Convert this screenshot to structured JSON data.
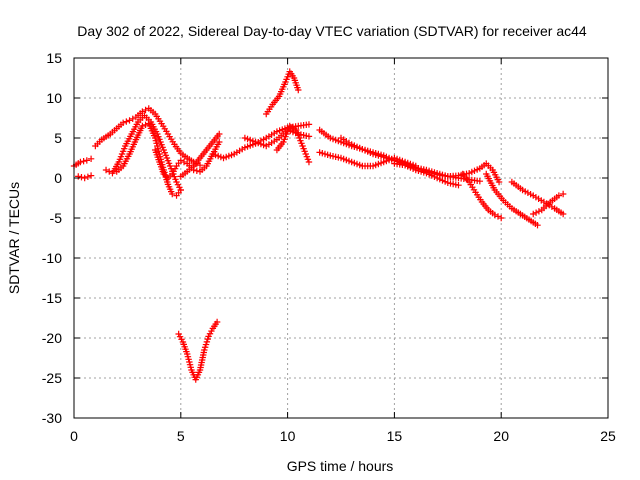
{
  "chart_data": {
    "type": "scatter",
    "title": "Day 302 of 2022, Sidereal Day-to-day VTEC variation (SDTVAR) for receiver ac44",
    "xlabel": "GPS time / hours",
    "ylabel": "SDTVAR / TECUs",
    "xlim": [
      0,
      25
    ],
    "ylim": [
      -30,
      15
    ],
    "xticks": [
      0,
      5,
      10,
      15,
      20,
      25
    ],
    "yticks": [
      15,
      10,
      5,
      0,
      -5,
      -10,
      -15,
      -20,
      -25,
      -30
    ],
    "grid": true,
    "marker": "+",
    "color": "#ff0000",
    "series": [
      {
        "name": "arc1",
        "x": [
          0.0,
          0.3,
          0.6,
          0.8
        ],
        "y": [
          1.5,
          2.0,
          2.2,
          2.4
        ]
      },
      {
        "name": "arc2",
        "x": [
          0.2,
          0.5,
          0.8
        ],
        "y": [
          0.2,
          0.0,
          0.3
        ]
      },
      {
        "name": "arc3",
        "x": [
          1.0,
          1.3,
          1.7,
          2.0,
          2.3,
          2.6,
          2.9,
          3.2,
          3.5,
          3.8,
          4.1,
          4.4,
          4.7,
          5.0,
          5.3,
          5.6,
          5.9
        ],
        "y": [
          4.0,
          4.8,
          5.5,
          6.2,
          6.9,
          7.2,
          7.6,
          8.3,
          8.7,
          8.0,
          6.8,
          5.5,
          4.2,
          3.1,
          2.5,
          2.0,
          1.6
        ]
      },
      {
        "name": "arc4",
        "x": [
          1.5,
          1.8,
          2.1,
          2.4,
          2.7,
          3.0,
          3.3,
          3.6,
          3.9,
          4.2,
          4.5,
          4.8,
          5.0
        ],
        "y": [
          1.0,
          0.6,
          2.0,
          4.0,
          5.5,
          7.0,
          7.8,
          7.0,
          5.5,
          3.5,
          1.5,
          -0.5,
          -1.5
        ]
      },
      {
        "name": "arc5",
        "x": [
          2.0,
          2.3,
          2.6,
          2.9,
          3.2,
          3.5,
          3.8,
          4.0,
          4.2,
          4.4,
          4.6,
          4.8,
          5.0
        ],
        "y": [
          0.8,
          1.5,
          3.0,
          4.8,
          6.5,
          6.8,
          5.0,
          3.0,
          1.0,
          -0.8,
          -2.0,
          -2.2,
          -1.5
        ]
      },
      {
        "name": "arc6",
        "x": [
          3.8,
          4.0,
          4.2,
          4.4,
          4.6,
          4.8,
          5.0,
          5.3,
          5.6,
          5.9,
          6.2,
          6.5,
          6.8
        ],
        "y": [
          3.5,
          2.0,
          0.5,
          0.0,
          0.5,
          1.5,
          2.2,
          1.8,
          1.0,
          0.8,
          1.5,
          3.0,
          4.5
        ]
      },
      {
        "name": "arc7",
        "x": [
          5.0,
          5.3,
          5.6,
          5.9,
          6.2,
          6.5,
          6.8
        ],
        "y": [
          0.2,
          0.8,
          1.5,
          2.5,
          3.5,
          4.5,
          5.5
        ]
      },
      {
        "name": "arc8",
        "x": [
          6.5,
          7.0,
          7.5,
          8.0,
          8.5,
          9.0,
          9.5,
          10.0,
          10.5,
          11.0
        ],
        "y": [
          3.0,
          2.5,
          3.0,
          3.8,
          4.3,
          5.0,
          5.8,
          6.3,
          6.5,
          6.7
        ]
      },
      {
        "name": "arc9",
        "x": [
          8.0,
          8.5,
          9.0,
          9.5,
          10.0,
          10.5,
          11.0
        ],
        "y": [
          5.0,
          4.5,
          4.0,
          4.8,
          6.0,
          5.5,
          5.2
        ]
      },
      {
        "name": "arc10",
        "x": [
          9.0,
          9.3,
          9.6,
          9.9,
          10.1,
          10.3,
          10.5
        ],
        "y": [
          8.0,
          9.2,
          10.2,
          12.0,
          13.3,
          12.5,
          11.0
        ]
      },
      {
        "name": "arc11",
        "x": [
          9.5,
          9.8,
          10.1,
          10.4,
          10.7,
          11.0
        ],
        "y": [
          3.5,
          4.5,
          6.5,
          6.0,
          4.0,
          2.0
        ]
      },
      {
        "name": "arc12",
        "x": [
          4.9,
          5.1,
          5.3,
          5.5,
          5.7,
          5.9,
          6.1,
          6.3,
          6.5,
          6.7
        ],
        "y": [
          -19.5,
          -20.5,
          -22.0,
          -24.0,
          -25.2,
          -24.0,
          -21.5,
          -19.8,
          -18.8,
          -18.0
        ]
      },
      {
        "name": "arc13",
        "x": [
          11.5,
          12.0,
          12.5,
          13.0,
          13.5,
          14.0,
          14.5,
          15.0,
          15.5,
          16.0,
          16.5,
          17.0,
          17.5,
          18.0,
          18.5,
          19.0
        ],
        "y": [
          6.0,
          5.0,
          4.5,
          4.0,
          3.6,
          3.2,
          2.8,
          2.2,
          1.8,
          1.3,
          1.0,
          0.6,
          0.2,
          0.0,
          -0.2,
          -0.4
        ]
      },
      {
        "name": "arc14",
        "x": [
          11.5,
          12.0,
          12.5,
          13.0,
          13.5,
          14.0,
          14.5,
          15.0,
          15.5,
          16.0
        ],
        "y": [
          3.2,
          2.8,
          2.5,
          2.0,
          1.5,
          1.5,
          2.0,
          2.5,
          2.0,
          1.5
        ]
      },
      {
        "name": "arc15",
        "x": [
          12.5,
          13.0,
          13.5,
          14.0,
          14.5,
          15.0,
          15.5,
          16.0,
          16.5,
          17.0,
          17.5,
          18.0
        ],
        "y": [
          5.0,
          4.2,
          3.6,
          3.0,
          2.6,
          2.2,
          1.6,
          1.0,
          0.6,
          0.0,
          -0.6,
          -0.9
        ]
      },
      {
        "name": "arc16",
        "x": [
          15.0,
          15.5,
          16.0,
          16.5,
          17.0,
          17.5,
          18.0,
          18.5,
          19.0,
          19.3,
          19.6,
          19.9
        ],
        "y": [
          1.8,
          1.6,
          1.3,
          0.8,
          0.4,
          0.2,
          0.3,
          0.6,
          1.2,
          1.8,
          1.0,
          -0.5
        ]
      },
      {
        "name": "arc17",
        "x": [
          18.2,
          18.5,
          18.8,
          19.1,
          19.4,
          19.7,
          20.0
        ],
        "y": [
          0.5,
          -0.5,
          -1.8,
          -3.0,
          -4.0,
          -4.6,
          -5.0
        ]
      },
      {
        "name": "arc18",
        "x": [
          19.3,
          19.7,
          20.1,
          20.5,
          20.9,
          21.3,
          21.7
        ],
        "y": [
          0.5,
          -1.5,
          -2.8,
          -3.8,
          -4.5,
          -5.2,
          -5.9
        ]
      },
      {
        "name": "arc19",
        "x": [
          20.5,
          21.0,
          21.5,
          22.0,
          22.5,
          22.9
        ],
        "y": [
          -0.5,
          -1.5,
          -2.2,
          -3.0,
          -3.8,
          -4.5
        ]
      },
      {
        "name": "arc20",
        "x": [
          21.5,
          21.9,
          22.3,
          22.7,
          22.9
        ],
        "y": [
          -4.5,
          -4.0,
          -3.0,
          -2.2,
          -2.0
        ]
      }
    ]
  }
}
